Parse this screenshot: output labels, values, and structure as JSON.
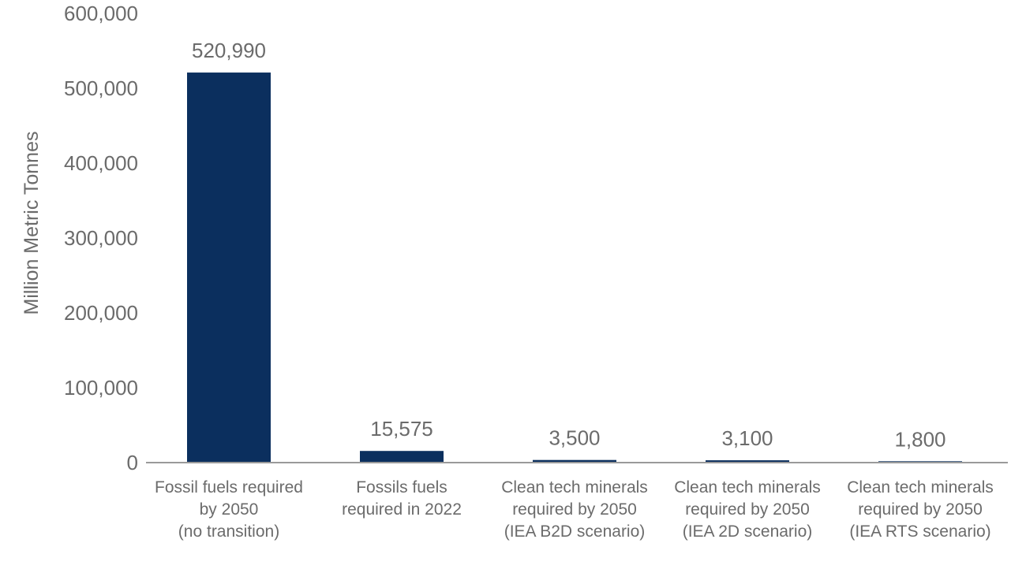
{
  "chart_data": {
    "type": "bar",
    "title": "",
    "xlabel": "",
    "ylabel": "Million Metric Tonnes",
    "ylim": [
      0,
      600000
    ],
    "yticks": [
      0,
      100000,
      200000,
      300000,
      400000,
      500000,
      600000
    ],
    "ytick_labels": [
      "0",
      "100,000",
      "200,000",
      "300,000",
      "400,000",
      "500,000",
      "600,000"
    ],
    "grid": false,
    "bar_color": "#0b2f5e",
    "axis_color": "#9a9a9a",
    "categories": [
      [
        "Fossil fuels required",
        "by 2050",
        "(no transition)"
      ],
      [
        "Fossils fuels",
        "required in 2022"
      ],
      [
        "Clean tech minerals",
        "required by 2050",
        "(IEA B2D scenario)"
      ],
      [
        "Clean tech minerals",
        "required by 2050",
        "(IEA 2D scenario)"
      ],
      [
        "Clean tech minerals",
        "required by 2050",
        "(IEA RTS scenario)"
      ]
    ],
    "values": [
      520990,
      15575,
      3500,
      3100,
      1800
    ],
    "value_labels": [
      "520,990",
      "15,575",
      "3,500",
      "3,100",
      "1,800"
    ]
  }
}
